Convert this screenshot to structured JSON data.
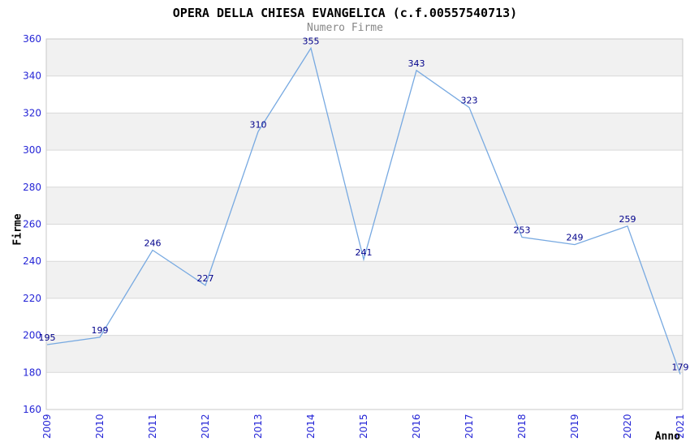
{
  "chart_data": {
    "type": "line",
    "title": "OPERA DELLA CHIESA EVANGELICA (c.f.00557540713)",
    "subtitle": "Numero Firme",
    "xlabel": "Anno",
    "ylabel": "Firme",
    "x": [
      "2009",
      "2010",
      "2011",
      "2012",
      "2013",
      "2014",
      "2015",
      "2016",
      "2017",
      "2018",
      "2019",
      "2020",
      "2021"
    ],
    "series": [
      {
        "name": "Numero Firme",
        "values": [
          195,
          199,
          246,
          227,
          310,
          355,
          241,
          343,
          323,
          253,
          249,
          259,
          179
        ]
      }
    ],
    "ylim": [
      160,
      360
    ],
    "ytick_step": 20,
    "grid": true,
    "alternating_bands": true,
    "legend_position": "none",
    "data_labels_visible": true,
    "colors": {
      "line": "#77a9e1",
      "data_label": "#00008b",
      "tick_label": "#2525d6",
      "band": "#f1f1f1",
      "gridline": "#d9d9d9",
      "plot_border": "#c9c9c9",
      "title": "#000000",
      "subtitle": "#878787",
      "background": "#ffffff"
    }
  }
}
